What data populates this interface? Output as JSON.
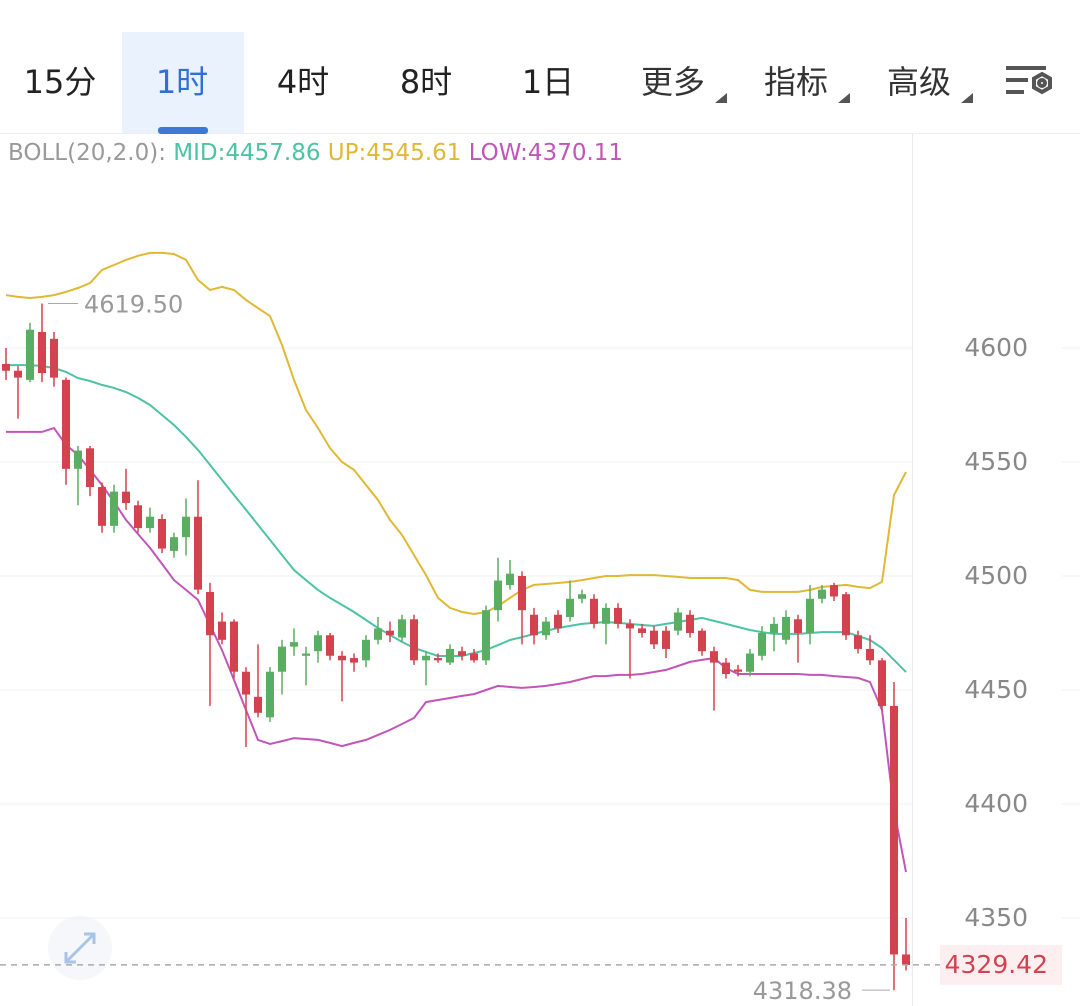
{
  "tabs": {
    "items": [
      "15分",
      "1时",
      "4时",
      "8时",
      "1日"
    ],
    "selected": 1,
    "menus": [
      "更多",
      "指标",
      "高级"
    ]
  },
  "chart_data": {
    "type": "candlestick",
    "open": [
      4593,
      4590,
      4586,
      4607,
      4604,
      4586,
      4547,
      4556,
      4539,
      4522,
      4537,
      4531,
      4521,
      4525,
      4511,
      4517,
      4526,
      4493,
      4480,
      4480,
      4458,
      4447,
      4438,
      4458,
      4469,
      4465,
      4467,
      4474,
      4465,
      4464,
      4463,
      4472,
      4476,
      4473,
      4481,
      4463,
      4464,
      4462,
      4467,
      4466,
      4463,
      4485,
      4496,
      4500,
      4483,
      4474,
      4483,
      4482,
      4490,
      4490,
      4479,
      4486,
      4479,
      4477,
      4476,
      4476,
      4476,
      4483,
      4476,
      4467,
      4462,
      4459,
      4458,
      4465,
      4475,
      4472,
      4481,
      4475,
      4490,
      4496,
      4492,
      4474,
      4468,
      4463,
      4443,
      4334
    ],
    "high": [
      4600,
      4592,
      4611,
      4619.5,
      4607,
      4587,
      4557,
      4557,
      4541,
      4540,
      4547,
      4533,
      4530,
      4527,
      4519,
      4534,
      4542,
      4497,
      4484,
      4481,
      4460,
      4470,
      4460,
      4472,
      4477,
      4469,
      4476,
      4475,
      4467,
      4466,
      4474,
      4482,
      4480,
      4483,
      4483,
      4467,
      4466,
      4470,
      4469,
      4468,
      4487,
      4508,
      4507,
      4502,
      4486,
      4482,
      4485,
      4498,
      4494,
      4492,
      4488,
      4488,
      4481,
      4479,
      4478,
      4478,
      4486,
      4485,
      4477,
      4469,
      4464,
      4461,
      4468,
      4478,
      4482,
      4485,
      4483,
      4496,
      4496,
      4497,
      4493,
      4476,
      4474,
      4464,
      4453.5,
      4350
    ],
    "low": [
      4586,
      4569,
      4585,
      4585,
      4583,
      4540,
      4531,
      4535,
      4519,
      4519,
      4529,
      4519,
      4519,
      4510,
      4508,
      4509,
      4492,
      4443,
      4470,
      4455,
      4425,
      4438,
      4436,
      4448,
      4465,
      4452,
      4462,
      4463,
      4445,
      4458,
      4460,
      4470,
      4471,
      4471,
      4461,
      4452,
      4462,
      4461,
      4463,
      4462,
      4461,
      4480,
      4494,
      4470,
      4470,
      4472,
      4475,
      4480,
      4488,
      4477,
      4470,
      4477,
      4455,
      4473,
      4468,
      4464,
      4474,
      4473,
      4465,
      4441,
      4455,
      4456,
      4456,
      4463,
      4467,
      4470,
      4462,
      4470,
      4488,
      4489,
      4472,
      4466,
      4461,
      4441,
      4318.38,
      4327
    ],
    "close": [
      4590,
      4587,
      4608,
      4589,
      4587,
      4547,
      4555,
      4539,
      4522,
      4537,
      4532,
      4521,
      4526,
      4512,
      4517,
      4526,
      4494,
      4474,
      4472,
      4458,
      4448,
      4440,
      4458,
      4469,
      4471,
      4466,
      4474,
      4465,
      4463,
      4462,
      4472,
      4477,
      4474,
      4481,
      4463,
      4465,
      4463,
      4468,
      4465,
      4463,
      4485,
      4498,
      4501,
      4485,
      4474,
      4480,
      4477,
      4490,
      4492,
      4479,
      4486,
      4479,
      4477,
      4475,
      4470,
      4468,
      4484,
      4475,
      4467,
      4462,
      4457,
      4458,
      4466,
      4475,
      4479,
      4482,
      4475,
      4490,
      4494,
      4491,
      4474,
      4468,
      4463,
      4443,
      4334,
      4329.42
    ],
    "up_color": "#5aae62",
    "down_color": "#d2434f",
    "ylim": [
      4311.4,
      4693.4
    ],
    "yticks": [
      4350,
      4400,
      4450,
      4500,
      4550,
      4600
    ],
    "grid": true,
    "indicator": {
      "label": "BOLL(20,2.0):",
      "series": [
        {
          "name": "MID:4457.86",
          "color": "#4cc3a6",
          "values": [
            4592.5,
            4592.5,
            4592.5,
            4592.1,
            4591.2,
            4589.5,
            4586.8,
            4585.5,
            4583.8,
            4582.5,
            4580.7,
            4578.1,
            4575.0,
            4570.6,
            4566.2,
            4561.0,
            4555.3,
            4548.7,
            4542.1,
            4535.5,
            4529.0,
            4522.4,
            4515.8,
            4509.2,
            4502.6,
            4498.2,
            4493.9,
            4490.4,
            4487.3,
            4484.2,
            4480.7,
            4477.2,
            4474.1,
            4471.1,
            4468.4,
            4466.7,
            4464.9,
            4464.9,
            4464.9,
            4466.2,
            4467.5,
            4469.7,
            4471.9,
            4473.2,
            4474.6,
            4475.9,
            4477.2,
            4478.1,
            4479.0,
            4479.4,
            4479.8,
            4479.4,
            4479.0,
            4478.5,
            4478.1,
            4479.0,
            4479.8,
            4480.7,
            4481.6,
            4480.3,
            4479.0,
            4477.6,
            4476.3,
            4475.4,
            4474.6,
            4474.6,
            4474.6,
            4475.0,
            4475.4,
            4475.4,
            4475.4,
            4473.7,
            4471.9,
            4468.4,
            4463.2,
            4457.86
          ]
        },
        {
          "name": "UP:4545.61",
          "color": "#e0b834",
          "values": [
            4623.2,
            4622.4,
            4621.9,
            4622.4,
            4623.2,
            4624.6,
            4626.3,
            4628.5,
            4634.2,
            4636.4,
            4638.6,
            4640.4,
            4641.7,
            4641.7,
            4641.2,
            4638.6,
            4629.8,
            4625.4,
            4626.8,
            4625.4,
            4621.1,
            4617.5,
            4614.0,
            4601.3,
            4586.0,
            4572.8,
            4564.9,
            4556.1,
            4550.0,
            4546.5,
            4539.9,
            4533.3,
            4524.6,
            4518.0,
            4509.2,
            4500.4,
            4490.4,
            4486.0,
            4484.2,
            4483.3,
            4484.2,
            4486.8,
            4490.4,
            4493.9,
            4496.1,
            4496.5,
            4496.9,
            4497.4,
            4498.2,
            4499.1,
            4500.0,
            4500.0,
            4500.4,
            4500.4,
            4500.4,
            4500.0,
            4499.6,
            4499.1,
            4499.1,
            4499.1,
            4499.1,
            4498.2,
            4493.9,
            4493.0,
            4493.0,
            4493.0,
            4493.0,
            4493.9,
            4495.2,
            4495.6,
            4496.1,
            4495.2,
            4494.7,
            4497.4,
            4535.5,
            4545.61
          ]
        },
        {
          "name": "LOW:4370.11",
          "color": "#c255b9",
          "values": [
            4563.2,
            4563.2,
            4563.2,
            4563.2,
            4564.9,
            4557.5,
            4553.1,
            4546.5,
            4539.9,
            4532.5,
            4524.6,
            4518.4,
            4512.3,
            4505.3,
            4498.2,
            4493.9,
            4489.5,
            4478.5,
            4467.5,
            4454.4,
            4441.2,
            4428.1,
            4426.3,
            4427.6,
            4428.9,
            4428.5,
            4428.1,
            4426.8,
            4425.4,
            4426.8,
            4428.1,
            4430.3,
            4432.5,
            4435.1,
            4437.7,
            4444.7,
            4445.6,
            4446.5,
            4447.4,
            4448.2,
            4450.0,
            4451.8,
            4451.3,
            4450.9,
            4451.3,
            4451.8,
            4452.6,
            4453.5,
            4454.8,
            4456.1,
            4456.1,
            4456.6,
            4456.6,
            4457.0,
            4457.9,
            4458.8,
            4460.5,
            4462.3,
            4463.2,
            4464.0,
            4459.6,
            4457.0,
            4457.0,
            4457.0,
            4457.0,
            4457.0,
            4457.0,
            4456.6,
            4456.6,
            4456.1,
            4455.7,
            4455.3,
            4453.5,
            4441.2,
            4397.4,
            4370.11
          ]
        }
      ]
    },
    "max_label": "4619.50",
    "min_label": "4318.38",
    "last_label": "4329.42"
  }
}
